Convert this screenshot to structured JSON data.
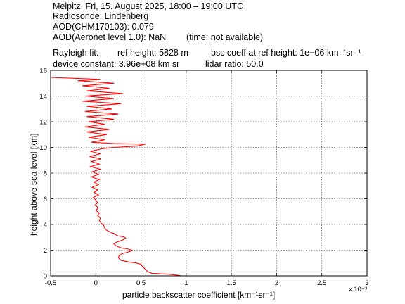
{
  "header": {
    "line1": "Melpitz, Fri, 15. August 2025, 18:00 – 19:00 UTC",
    "line2": "Radiosonde: Lindenberg",
    "line3": "AOD(CHM170103): 0.079",
    "line4_left": "AOD(Aeronet level 1.0): NaN",
    "line4_right": "(time: not available)",
    "line5_left": "Rayleigh fit:",
    "line5_mid": "ref height: 5828 m",
    "line5_right": "bsc coeff at ref height: 1e−06 km⁻¹sr⁻¹",
    "line6_left": "device constant: 3.96e+08 km sr",
    "line6_right": "lidar ratio: 50.0"
  },
  "chart_data": {
    "type": "line",
    "xlabel": "particle backscatter coefficient [km⁻¹sr⁻¹]",
    "ylabel": "height above sea level [km]",
    "x_multiplier_label": "x 10⁻³",
    "xlim": [
      -0.5,
      3
    ],
    "ylim": [
      0,
      16
    ],
    "xticks": [
      -0.5,
      0,
      0.5,
      1,
      1.5,
      2,
      2.5,
      3
    ],
    "xtick_labels": [
      "-0.5",
      "0",
      "0.5",
      "1",
      "1.5",
      "2",
      "2.5",
      "3"
    ],
    "yticks": [
      0,
      2,
      4,
      6,
      8,
      10,
      12,
      14,
      16
    ],
    "grid": true,
    "series": [
      {
        "color": "#ff0000",
        "points": [
          [
            0.95,
            0.0
          ],
          [
            0.85,
            0.1
          ],
          [
            0.75,
            0.15
          ],
          [
            0.62,
            0.2
          ],
          [
            0.58,
            0.3
          ],
          [
            0.55,
            0.5
          ],
          [
            0.52,
            0.7
          ],
          [
            0.5,
            0.9
          ],
          [
            0.45,
            1.0
          ],
          [
            0.35,
            1.1
          ],
          [
            0.28,
            1.2
          ],
          [
            0.25,
            1.4
          ],
          [
            0.26,
            1.6
          ],
          [
            0.3,
            1.75
          ],
          [
            0.38,
            1.9
          ],
          [
            0.4,
            2.0
          ],
          [
            0.35,
            2.1
          ],
          [
            0.27,
            2.2
          ],
          [
            0.22,
            2.35
          ],
          [
            0.2,
            2.5
          ],
          [
            0.22,
            2.6
          ],
          [
            0.26,
            2.7
          ],
          [
            0.3,
            2.8
          ],
          [
            0.33,
            2.95
          ],
          [
            0.3,
            3.05
          ],
          [
            0.25,
            3.1
          ],
          [
            0.22,
            3.2
          ],
          [
            0.2,
            3.3
          ],
          [
            0.16,
            3.4
          ],
          [
            0.12,
            3.55
          ],
          [
            0.1,
            3.7
          ],
          [
            0.09,
            3.9
          ],
          [
            0.06,
            4.1
          ],
          [
            0.04,
            4.3
          ],
          [
            0.05,
            4.5
          ],
          [
            0.02,
            4.7
          ],
          [
            0.04,
            4.9
          ],
          [
            0.0,
            5.1
          ],
          [
            0.03,
            5.3
          ],
          [
            -0.01,
            5.5
          ],
          [
            0.02,
            5.7
          ],
          [
            0.0,
            5.9
          ],
          [
            -0.03,
            6.1
          ],
          [
            0.03,
            6.3
          ],
          [
            -0.02,
            6.5
          ],
          [
            0.02,
            6.7
          ],
          [
            -0.04,
            6.9
          ],
          [
            0.03,
            7.1
          ],
          [
            -0.02,
            7.3
          ],
          [
            0.04,
            7.5
          ],
          [
            -0.05,
            7.7
          ],
          [
            0.03,
            7.9
          ],
          [
            -0.04,
            8.1
          ],
          [
            0.05,
            8.3
          ],
          [
            -0.06,
            8.5
          ],
          [
            0.04,
            8.7
          ],
          [
            -0.05,
            8.9
          ],
          [
            0.06,
            9.1
          ],
          [
            -0.07,
            9.3
          ],
          [
            0.05,
            9.5
          ],
          [
            -0.06,
            9.7
          ],
          [
            0.07,
            9.9
          ],
          [
            0.2,
            10.0
          ],
          [
            0.45,
            10.1
          ],
          [
            0.55,
            10.25
          ],
          [
            0.2,
            10.3
          ],
          [
            -0.05,
            10.4
          ],
          [
            0.1,
            10.6
          ],
          [
            -0.08,
            10.8
          ],
          [
            0.12,
            11.0
          ],
          [
            -0.1,
            11.2
          ],
          [
            0.15,
            11.4
          ],
          [
            -0.12,
            11.6
          ],
          [
            0.1,
            11.8
          ],
          [
            -0.08,
            12.0
          ],
          [
            0.2,
            12.2
          ],
          [
            -0.1,
            12.4
          ],
          [
            0.25,
            12.6
          ],
          [
            -0.12,
            12.8
          ],
          [
            0.18,
            13.0
          ],
          [
            -0.1,
            13.2
          ],
          [
            0.28,
            13.4
          ],
          [
            -0.15,
            13.6
          ],
          [
            0.2,
            13.8
          ],
          [
            -0.12,
            14.0
          ],
          [
            0.3,
            14.2
          ],
          [
            -0.1,
            14.4
          ],
          [
            0.15,
            14.6
          ],
          [
            -0.15,
            14.8
          ],
          [
            0.2,
            15.0
          ],
          [
            -0.2,
            15.2
          ],
          [
            0.05,
            15.3
          ],
          [
            -0.5,
            15.45
          ]
        ]
      }
    ]
  }
}
